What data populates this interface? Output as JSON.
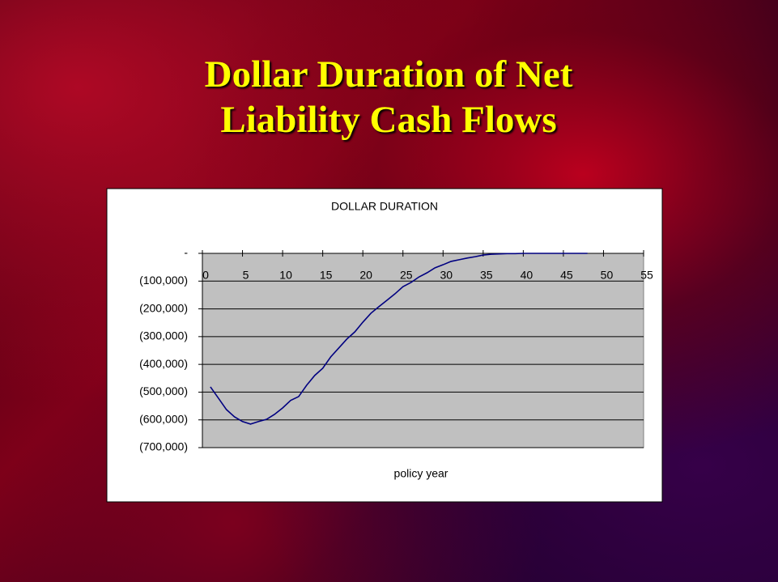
{
  "slide_title": "Dollar Duration of Net Liability Cash Flows",
  "chart_data": {
    "type": "line",
    "title": "DOLLAR DURATION",
    "xlabel": "policy year",
    "x": [
      1,
      2,
      3,
      4,
      5,
      6,
      7,
      8,
      9,
      10,
      11,
      12,
      13,
      14,
      15,
      16,
      17,
      18,
      19,
      20,
      21,
      22,
      23,
      24,
      25,
      26,
      27,
      28,
      29,
      30,
      31,
      32,
      33,
      34,
      35,
      36,
      37,
      38,
      39,
      40,
      41,
      42,
      43,
      44,
      45,
      46,
      47,
      48
    ],
    "series": [
      {
        "color": "#000080",
        "values": [
          -481000,
          -522000,
          -563000,
          -589000,
          -606000,
          -615000,
          -606000,
          -598000,
          -580000,
          -557000,
          -530000,
          -516000,
          -475000,
          -440000,
          -414000,
          -373000,
          -341000,
          -309000,
          -283000,
          -248000,
          -216000,
          -192000,
          -169000,
          -146000,
          -120000,
          -105000,
          -85000,
          -70000,
          -52000,
          -41000,
          -29000,
          -23000,
          -17000,
          -12000,
          -6000,
          -3000,
          -2000,
          -1000,
          -1000,
          0,
          0,
          0,
          0,
          0,
          0,
          0,
          0,
          0
        ]
      }
    ],
    "xlim": [
      0,
      55
    ],
    "xticks": [
      0,
      5,
      10,
      15,
      20,
      25,
      30,
      35,
      40,
      45,
      50,
      55
    ],
    "ylim": [
      -700000,
      0
    ],
    "yticks": [
      {
        "value": 0,
        "label": "-"
      },
      {
        "value": -100000,
        "label": "(100,000)"
      },
      {
        "value": -200000,
        "label": "(200,000)"
      },
      {
        "value": -300000,
        "label": "(300,000)"
      },
      {
        "value": -400000,
        "label": "(400,000)"
      },
      {
        "value": -500000,
        "label": "(500,000)"
      },
      {
        "value": -600000,
        "label": "(600,000)"
      },
      {
        "value": -700000,
        "label": "(700,000)"
      }
    ],
    "grid": true,
    "plot_background": "#c0c0c0"
  }
}
